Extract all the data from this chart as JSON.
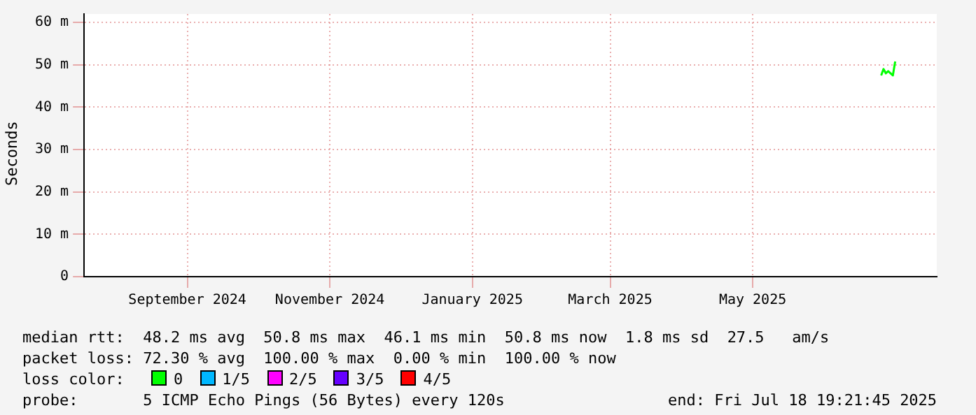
{
  "chart_data": {
    "type": "line",
    "ylabel": "Seconds",
    "xlim": [
      "2024-07-18T19:21",
      "2025-07-18T19:21"
    ],
    "xticks": [
      {
        "value": "2024-09-01",
        "label": "September 2024"
      },
      {
        "value": "2024-11-01",
        "label": "November 2024"
      },
      {
        "value": "2025-01-01",
        "label": "January 2025"
      },
      {
        "value": "2025-03-01",
        "label": "March 2025"
      },
      {
        "value": "2025-05-01",
        "label": "May 2025"
      }
    ],
    "ylim": [
      0,
      62
    ],
    "yticks": [
      0,
      {
        "value": 10,
        "label": "10 m"
      },
      {
        "value": 20,
        "label": "20 m"
      },
      {
        "value": 30,
        "label": "30 m"
      },
      {
        "value": 40,
        "label": "40 m"
      },
      {
        "value": 50,
        "label": "50 m"
      },
      {
        "value": 60,
        "label": "60 m"
      }
    ],
    "grid": true,
    "legend": "bottom",
    "marker": "none",
    "line_style": "solid",
    "series": [
      {
        "name": "0",
        "color": "#00ff00",
        "x": [
          "2025-06-25",
          "2025-06-26",
          "2025-06-27",
          "2025-06-28",
          "2025-06-29",
          "2025-06-30",
          "2025-07-01"
        ],
        "values": [
          47.5,
          49,
          48,
          48.5,
          48,
          47.5,
          50.8
        ]
      },
      {
        "name": "1/5",
        "color": "#00b8ff"
      },
      {
        "name": "2/5",
        "color": "#ff00ff"
      },
      {
        "name": "3/5",
        "color": "#6600ff"
      },
      {
        "name": "4/5",
        "color": "#ff0000"
      }
    ],
    "legend_title": "loss color:",
    "annotations": [
      "median rtt:  48.2 ms avg  50.8 ms max  46.1 ms min  50.8 ms now  1.8 ms sd  27.5   am/s",
      "packet loss: 72.30 % avg  100.00 % max  0.00 % min  100.00 % now",
      "probe:       5 ICMP Echo Pings (56 Bytes) every 120s",
      "end: Fri Jul 18 19:21:45 2025"
    ]
  }
}
